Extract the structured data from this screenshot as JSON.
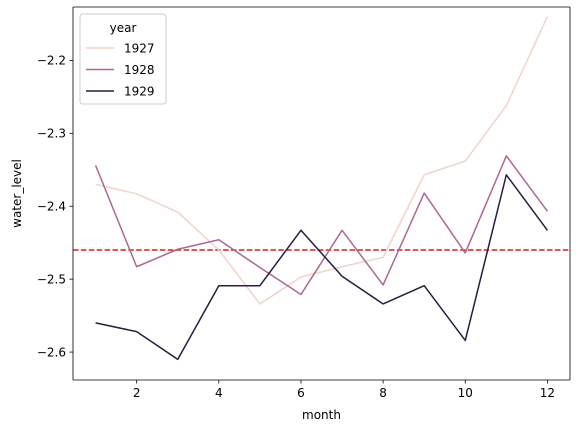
{
  "chart_data": {
    "type": "line",
    "xlabel": "month",
    "ylabel": "water_level",
    "xlim": [
      0.45,
      12.55
    ],
    "ylim": [
      -2.6383,
      -2.1268
    ],
    "xticks": [
      2,
      4,
      6,
      8,
      10,
      12
    ],
    "xtick_labels": [
      "2",
      "4",
      "6",
      "8",
      "10",
      "12"
    ],
    "yticks": [
      -2.6,
      -2.5,
      -2.4,
      -2.3,
      -2.2
    ],
    "ytick_labels": [
      "−2.6",
      "−2.5",
      "−2.4",
      "−2.3",
      "−2.2"
    ],
    "x": [
      1,
      2,
      3,
      4,
      5,
      6,
      7,
      8,
      9,
      10,
      11,
      12
    ],
    "grid": false,
    "legend": {
      "title": "year",
      "placement": "upper-left"
    },
    "series": [
      {
        "name": "1927",
        "color": "#f0d4cb",
        "values": [
          -2.37,
          -2.383,
          -2.408,
          -2.46,
          -2.534,
          -2.497,
          -2.483,
          -2.47,
          -2.357,
          -2.338,
          -2.262,
          -2.14
        ]
      },
      {
        "name": "1928",
        "color": "#ad6891",
        "values": [
          -2.344,
          -2.483,
          -2.459,
          -2.446,
          -2.484,
          -2.521,
          -2.433,
          -2.508,
          -2.382,
          -2.464,
          -2.331,
          -2.407
        ]
      },
      {
        "name": "1929",
        "color": "#2b1b3e",
        "values": [
          -2.56,
          -2.572,
          -2.61,
          -2.509,
          -2.509,
          -2.433,
          -2.496,
          -2.534,
          -2.509,
          -2.584,
          -2.357,
          -2.433
        ]
      }
    ],
    "reference_line": {
      "y": -2.46,
      "color": "#e41a1c",
      "style": "dashed"
    },
    "title": ""
  }
}
